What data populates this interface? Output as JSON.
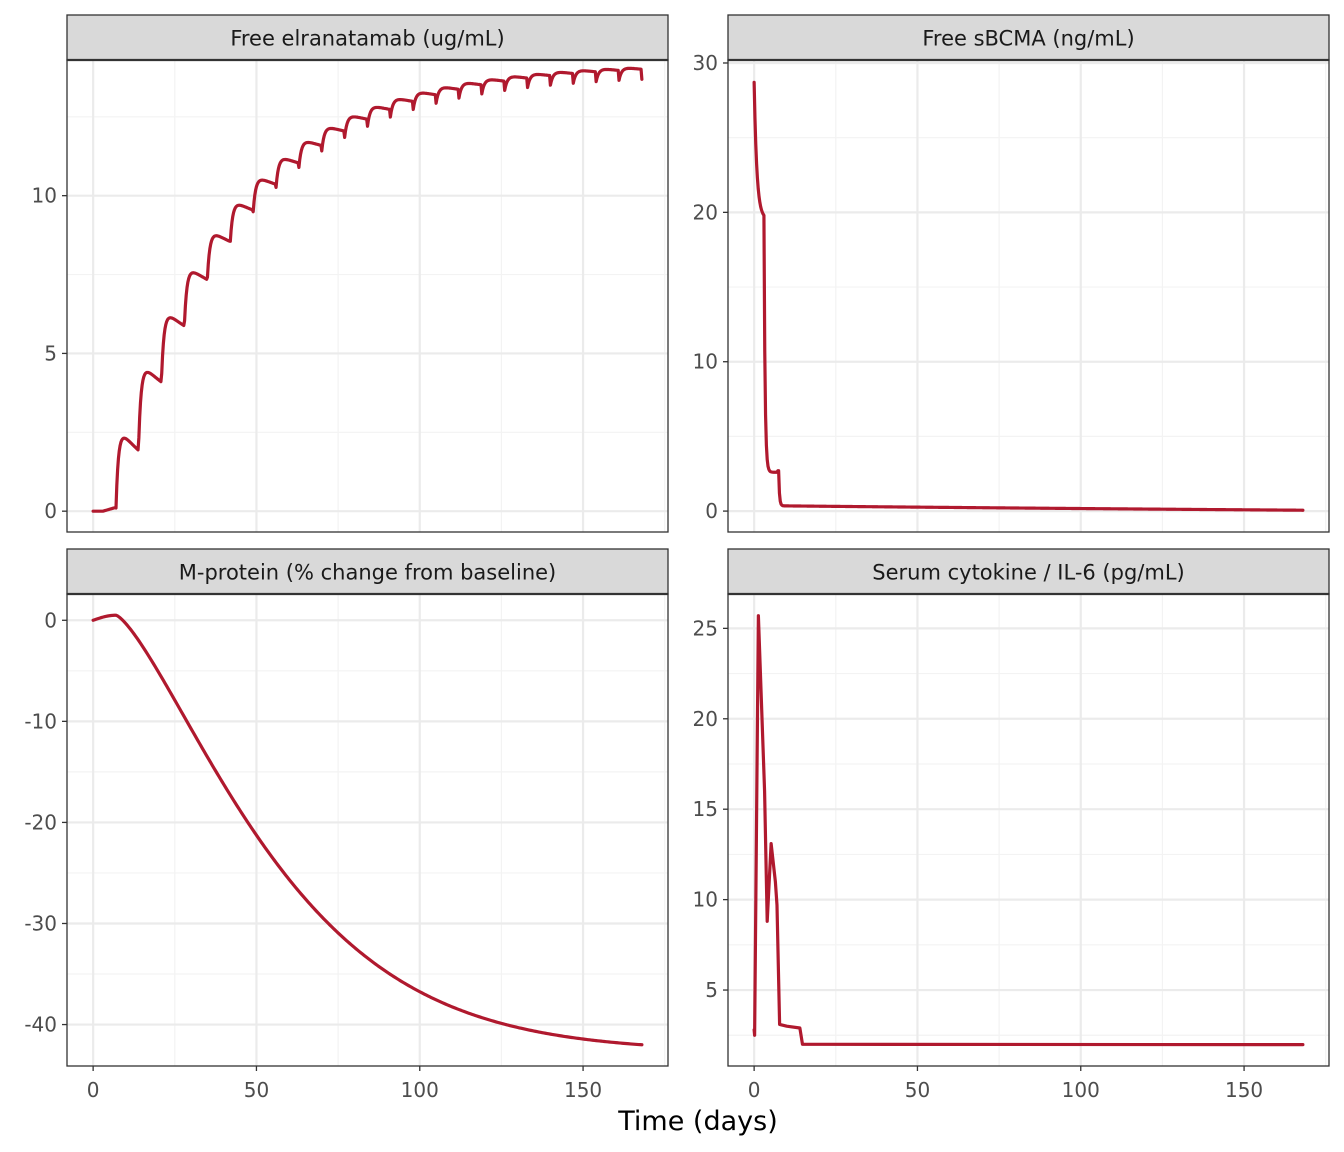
{
  "figure": {
    "xlabel": "Time (days)"
  },
  "colors": {
    "line": "#B0192E",
    "strip": "#D9D9D9",
    "grid_major": "#EBEBEB",
    "grid_minor": "#F3F3F3",
    "border": "#333333"
  },
  "chart_data": [
    {
      "type": "line",
      "title": "Free elranatamab (ug/mL)",
      "xlim": [
        -8,
        176
      ],
      "ylim": [
        -0.66,
        14.3
      ],
      "x_ticks": [
        0,
        50,
        100,
        150
      ],
      "y_ticks": [
        0,
        5,
        10
      ],
      "x_tick_labels": [
        "0",
        "50",
        "100",
        "150"
      ],
      "y_tick_labels": [
        "0",
        "5",
        "10"
      ],
      "show_x_tick_labels": false,
      "series": [
        {
          "x": [],
          "y": []
        }
      ]
    },
    {
      "type": "line",
      "title": "Free sBCMA (ng/mL)",
      "xlim": [
        -8,
        176
      ],
      "ylim": [
        -1.4,
        30.2
      ],
      "x_ticks": [
        0,
        50,
        100,
        150
      ],
      "y_ticks": [
        0,
        10,
        20,
        30
      ],
      "x_tick_labels": [
        "0",
        "50",
        "100",
        "150"
      ],
      "y_tick_labels": [
        "0",
        "10",
        "20",
        "30"
      ],
      "show_x_tick_labels": false,
      "series": [
        {
          "x": [],
          "y": []
        }
      ]
    },
    {
      "type": "line",
      "title": "M-protein (% change from baseline)",
      "xlim": [
        -8,
        176
      ],
      "ylim": [
        -44.1,
        2.6
      ],
      "x_ticks": [
        0,
        50,
        100,
        150
      ],
      "y_ticks": [
        -40,
        -30,
        -20,
        -10,
        0
      ],
      "x_tick_labels": [
        "0",
        "50",
        "100",
        "150"
      ],
      "y_tick_labels": [
        "-40",
        "-30",
        "-20",
        "-10",
        "0"
      ],
      "show_x_tick_labels": true,
      "series": [
        {
          "x": [],
          "y": []
        }
      ]
    },
    {
      "type": "line",
      "title": "Serum cytokine / IL-6 (pg/mL)",
      "xlim": [
        -8,
        176
      ],
      "ylim": [
        0.8,
        26.9
      ],
      "x_ticks": [
        0,
        50,
        100,
        150
      ],
      "y_ticks": [
        5,
        10,
        15,
        20,
        25
      ],
      "x_tick_labels": [
        "0",
        "50",
        "100",
        "150"
      ],
      "y_tick_labels": [
        "5",
        "10",
        "15",
        "20",
        "25"
      ],
      "show_x_tick_labels": true,
      "series": [
        {
          "x": [],
          "y": []
        }
      ]
    }
  ]
}
